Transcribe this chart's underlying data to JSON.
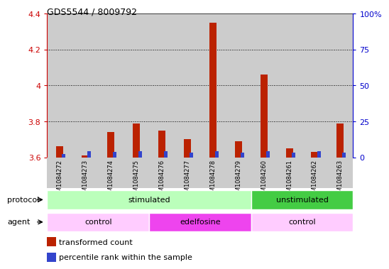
{
  "title": "GDS5544 / 8009792",
  "samples": [
    "GSM1084272",
    "GSM1084273",
    "GSM1084274",
    "GSM1084275",
    "GSM1084276",
    "GSM1084277",
    "GSM1084278",
    "GSM1084279",
    "GSM1084260",
    "GSM1084261",
    "GSM1084262",
    "GSM1084263"
  ],
  "red_values": [
    3.66,
    3.61,
    3.74,
    3.79,
    3.75,
    3.7,
    4.35,
    3.69,
    4.06,
    3.65,
    3.63,
    3.79
  ],
  "blue_values": [
    2.5,
    4.5,
    4.0,
    4.5,
    4.5,
    3.5,
    4.5,
    3.5,
    4.5,
    3.5,
    4.5,
    3.5
  ],
  "ylim_left": [
    3.6,
    4.4
  ],
  "ylim_right": [
    0,
    100
  ],
  "yticks_left": [
    3.6,
    3.8,
    4.0,
    4.2,
    4.4
  ],
  "ytick_labels_left": [
    "3.6",
    "3.8",
    "4",
    "4.2",
    "4.4"
  ],
  "yticks_right": [
    0,
    25,
    50,
    75,
    100
  ],
  "ytick_labels_right": [
    "0",
    "25",
    "50",
    "75",
    "100%"
  ],
  "red_color": "#bb2200",
  "blue_color": "#3344cc",
  "bg_color": "#ffffff",
  "cell_bg": "#cccccc",
  "protocol_groups": [
    {
      "label": "stimulated",
      "start": 0,
      "end": 7,
      "color": "#bbffbb"
    },
    {
      "label": "unstimulated",
      "start": 8,
      "end": 11,
      "color": "#44cc44"
    }
  ],
  "agent_groups": [
    {
      "label": "control",
      "start": 0,
      "end": 3,
      "color": "#ffccff"
    },
    {
      "label": "edelfosine",
      "start": 4,
      "end": 7,
      "color": "#ee44ee"
    },
    {
      "label": "control",
      "start": 8,
      "end": 11,
      "color": "#ffccff"
    }
  ],
  "legend_items": [
    {
      "label": "transformed count",
      "color": "#bb2200"
    },
    {
      "label": "percentile rank within the sample",
      "color": "#3344cc"
    }
  ],
  "protocol_label": "protocol",
  "agent_label": "agent",
  "left_axis_color": "#cc0000",
  "right_axis_color": "#0000cc"
}
